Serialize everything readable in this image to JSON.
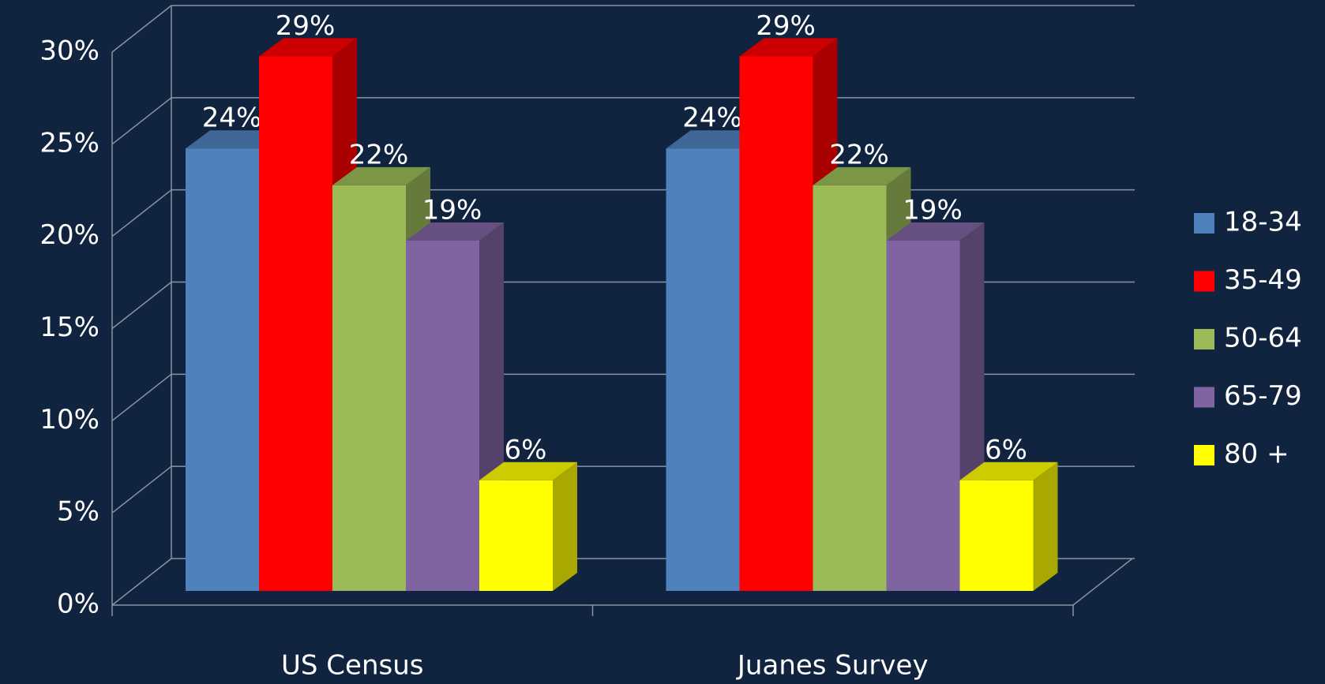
{
  "chart_data": {
    "type": "bar3d",
    "categories": [
      "US Census",
      "Juanes Survey"
    ],
    "series": [
      {
        "name": "18-34",
        "color": "#4f81bd",
        "values": [
          24,
          24
        ],
        "value_labels": [
          "24%",
          "24%"
        ]
      },
      {
        "name": "35-49",
        "color": "#ff0000",
        "values": [
          29,
          29
        ],
        "value_labels": [
          "29%",
          "29%"
        ]
      },
      {
        "name": "50-64",
        "color": "#9bbb59",
        "values": [
          22,
          22
        ],
        "value_labels": [
          "22%",
          "22%"
        ]
      },
      {
        "name": "65-79",
        "color": "#8064a2",
        "values": [
          19,
          19
        ],
        "value_labels": [
          "19%",
          "19%"
        ]
      },
      {
        "name": "80 +",
        "color": "#ffff00",
        "values": [
          6,
          6
        ],
        "value_labels": [
          "6%",
          "6%"
        ]
      }
    ],
    "ylim": [
      0,
      30
    ],
    "yticks": [
      {
        "value": 0,
        "label": "0%"
      },
      {
        "value": 5,
        "label": "5%"
      },
      {
        "value": 10,
        "label": "10%"
      },
      {
        "value": 15,
        "label": "15%"
      },
      {
        "value": 20,
        "label": "20%"
      },
      {
        "value": 25,
        "label": "25%"
      },
      {
        "value": 30,
        "label": "30%"
      }
    ],
    "grid": true,
    "legend": "right"
  }
}
